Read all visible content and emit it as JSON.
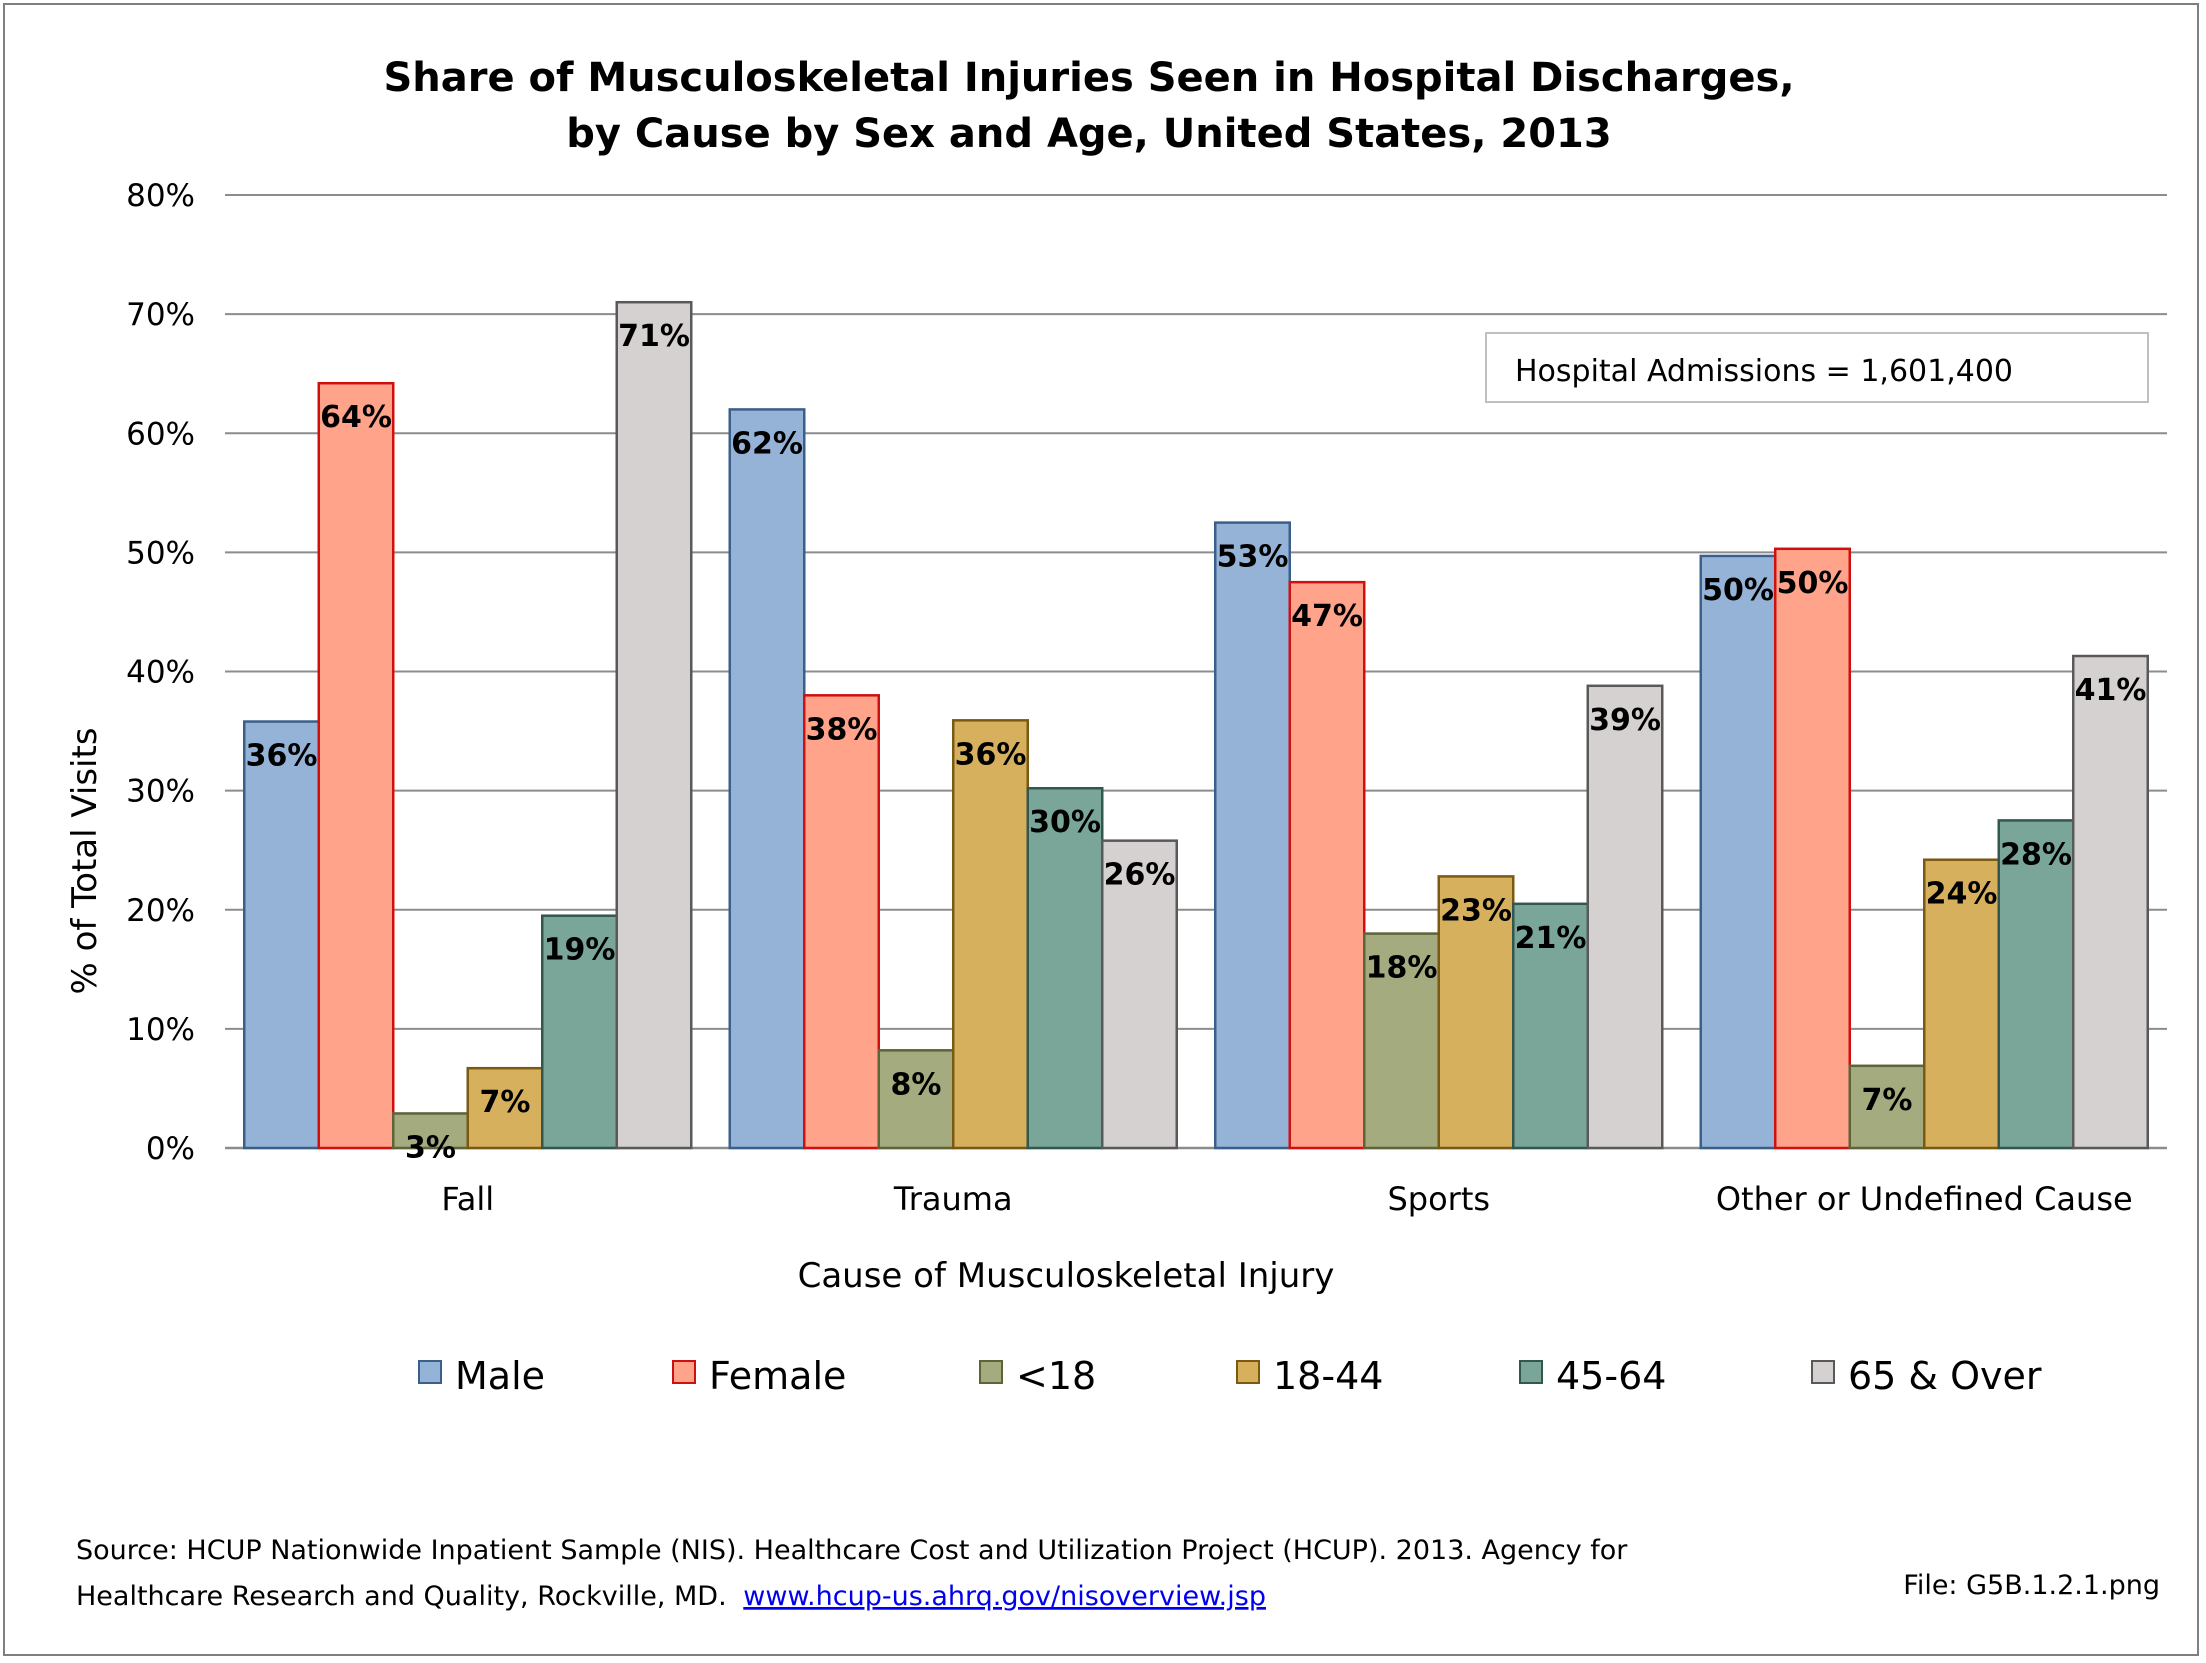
{
  "chart_data": {
    "type": "bar",
    "title": [
      "Share of Musculoskeletal Injuries Seen in Hospital Discharges,",
      "by Cause by Sex and Age, United States, 2013"
    ],
    "xlabel": "Cause of Musculoskeletal Injury",
    "ylabel": "% of Total Visits",
    "ylim": [
      0,
      80
    ],
    "yticks": [
      "0%",
      "10%",
      "20%",
      "30%",
      "40%",
      "50%",
      "60%",
      "70%",
      "80%"
    ],
    "grid": true,
    "legend_position": "bottom",
    "categories": [
      "Fall",
      "Trauma",
      "Sports",
      "Other or  Undefined Cause"
    ],
    "series": [
      {
        "name": "Male",
        "fill": "#95b3d7",
        "stroke": "#3a5f8a",
        "values": [
          35.8,
          62.0,
          52.5,
          49.7
        ],
        "labels": [
          "36%",
          "62%",
          "53%",
          "50%"
        ]
      },
      {
        "name": "Female",
        "fill": "#ffa38a",
        "stroke": "#d01010",
        "values": [
          64.2,
          38.0,
          47.5,
          50.3
        ],
        "labels": [
          "64%",
          "38%",
          "47%",
          "50%"
        ]
      },
      {
        "name": "<18",
        "fill": "#a4ab7f",
        "stroke": "#5f6338",
        "values": [
          2.9,
          8.2,
          18.0,
          6.9
        ],
        "labels": [
          "3%",
          "8%",
          "18%",
          "7%"
        ]
      },
      {
        "name": "18-44",
        "fill": "#d7b05d",
        "stroke": "#7a5a12",
        "values": [
          6.7,
          35.9,
          22.8,
          24.2
        ],
        "labels": [
          "7%",
          "36%",
          "23%",
          "24%"
        ]
      },
      {
        "name": "45-64",
        "fill": "#7aa69a",
        "stroke": "#33574d",
        "values": [
          19.5,
          30.2,
          20.5,
          27.5
        ],
        "labels": [
          "19%",
          "30%",
          "21%",
          "28%"
        ]
      },
      {
        "name": "65 & Over",
        "fill": "#d5d1d1",
        "stroke": "#595959",
        "values": [
          71.0,
          25.8,
          38.8,
          41.3
        ],
        "labels": [
          "71%",
          "26%",
          "39%",
          "41%"
        ]
      }
    ],
    "annotation": "Hospital Admissions = 1,601,400"
  },
  "footer": {
    "source_line1": "Source: HCUP Nationwide Inpatient Sample (NIS). Healthcare Cost and Utilization Project (HCUP). 2013. Agency for",
    "source_line2": "Healthcare Research and Quality, Rockville, MD.",
    "source_link": "www.hcup-us.ahrq.gov/nisoverview.jsp",
    "file_name": "File: G5B.1.2.1.png"
  }
}
